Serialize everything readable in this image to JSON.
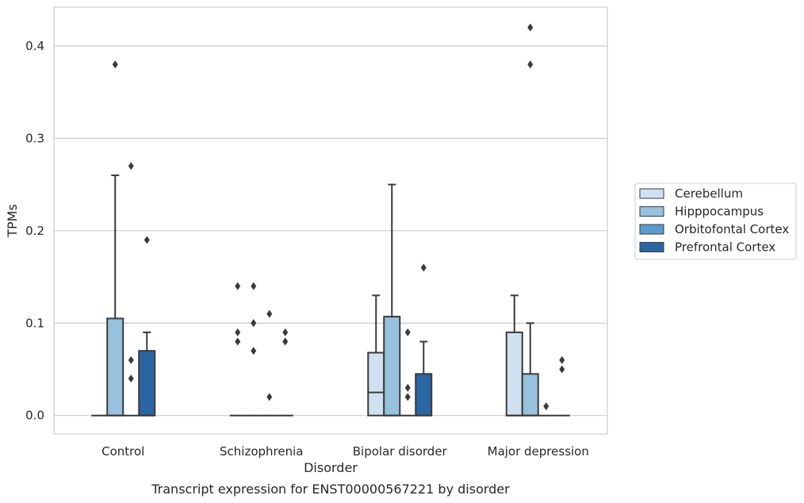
{
  "chart_data": {
    "type": "box",
    "caption": "Transcript expression for ENST00000567221 by disorder",
    "xlabel": "Disorder",
    "ylabel": "TPMs",
    "ylim": [
      -0.02,
      0.442
    ],
    "yticks": [
      "0.0",
      "0.1",
      "0.2",
      "0.3",
      "0.4"
    ],
    "grid": true,
    "legend_placement": "right",
    "categories": [
      "Control",
      "Schizophrenia",
      "Bipolar disorder",
      "Major depression"
    ],
    "series": [
      {
        "name": "Cerebellum",
        "color": "#cfe0f0",
        "boxes": [
          {
            "q1": 0,
            "median": 0,
            "q3": 0,
            "whisker_low": 0,
            "whisker_high": 0,
            "outliers": []
          },
          {
            "q1": 0,
            "median": 0,
            "q3": 0,
            "whisker_low": 0,
            "whisker_high": 0,
            "outliers": [
              0.14,
              0.09,
              0.08
            ]
          },
          {
            "q1": 0,
            "median": 0.025,
            "q3": 0.068,
            "whisker_low": 0,
            "whisker_high": 0.13,
            "outliers": []
          },
          {
            "q1": 0,
            "median": 0,
            "q3": 0.09,
            "whisker_low": 0,
            "whisker_high": 0.13,
            "outliers": []
          }
        ]
      },
      {
        "name": "Hipppocampus",
        "color": "#97c1dd",
        "boxes": [
          {
            "q1": 0,
            "median": 0,
            "q3": 0.105,
            "whisker_low": 0,
            "whisker_high": 0.26,
            "outliers": [
              0.38
            ]
          },
          {
            "q1": 0,
            "median": 0,
            "q3": 0,
            "whisker_low": 0,
            "whisker_high": 0,
            "outliers": [
              0.14,
              0.1,
              0.07
            ]
          },
          {
            "q1": 0,
            "median": 0,
            "q3": 0.107,
            "whisker_low": 0,
            "whisker_high": 0.25,
            "outliers": []
          },
          {
            "q1": 0,
            "median": 0,
            "q3": 0.045,
            "whisker_low": 0,
            "whisker_high": 0.1,
            "outliers": [
              0.42,
              0.38
            ]
          }
        ]
      },
      {
        "name": "Orbitofontal Cortex",
        "color": "#5b9bc9",
        "boxes": [
          {
            "q1": 0,
            "median": 0,
            "q3": 0,
            "whisker_low": 0,
            "whisker_high": 0,
            "outliers": [
              0.27,
              0.06,
              0.04
            ]
          },
          {
            "q1": 0,
            "median": 0,
            "q3": 0,
            "whisker_low": 0,
            "whisker_high": 0,
            "outliers": [
              0.11,
              0.02
            ]
          },
          {
            "q1": 0,
            "median": 0,
            "q3": 0,
            "whisker_low": 0,
            "whisker_high": 0,
            "outliers": [
              0.09,
              0.03,
              0.02
            ]
          },
          {
            "q1": 0,
            "median": 0,
            "q3": 0,
            "whisker_low": 0,
            "whisker_high": 0,
            "outliers": [
              0.01
            ]
          }
        ]
      },
      {
        "name": "Prefrontal Cortex",
        "color": "#2a66a3",
        "boxes": [
          {
            "q1": 0,
            "median": 0,
            "q3": 0.07,
            "whisker_low": 0,
            "whisker_high": 0.09,
            "outliers": [
              0.19
            ]
          },
          {
            "q1": 0,
            "median": 0,
            "q3": 0,
            "whisker_low": 0,
            "whisker_high": 0,
            "outliers": [
              0.09,
              0.08
            ]
          },
          {
            "q1": 0,
            "median": 0,
            "q3": 0.045,
            "whisker_low": 0,
            "whisker_high": 0.08,
            "outliers": [
              0.16
            ]
          },
          {
            "q1": 0,
            "median": 0,
            "q3": 0,
            "whisker_low": 0,
            "whisker_high": 0,
            "outliers": [
              0.06,
              0.05
            ]
          }
        ]
      }
    ]
  }
}
